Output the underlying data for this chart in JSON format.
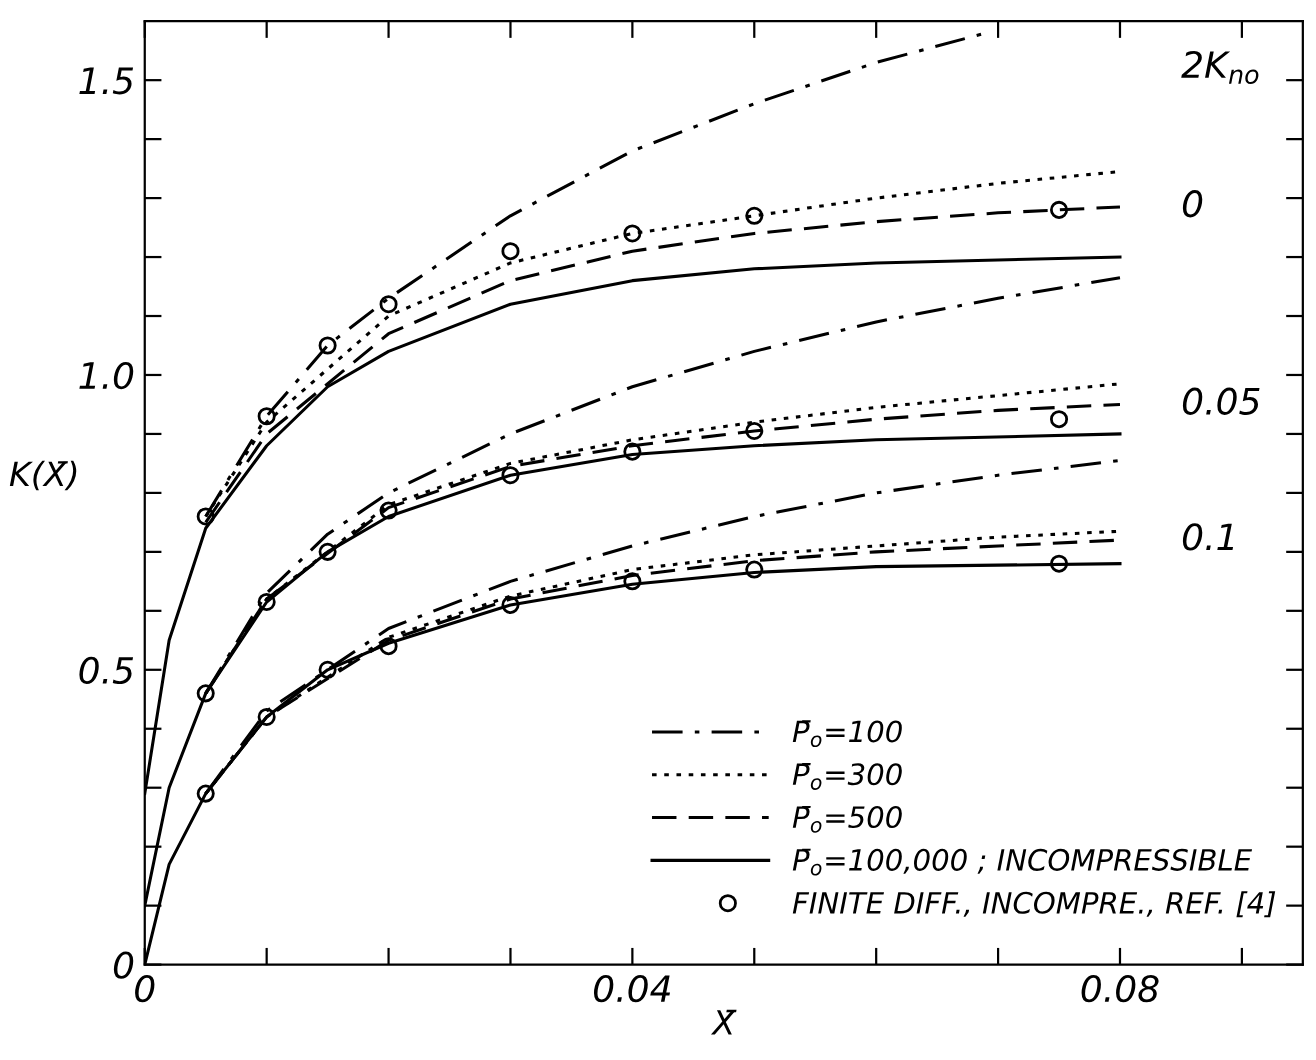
{
  "chart_data": {
    "type": "line",
    "xlabel": "X̄",
    "ylabel": "K(X̄)",
    "xlim": [
      0,
      0.095
    ],
    "ylim": [
      0,
      1.6
    ],
    "xticks": [
      0,
      {
        "value": 0.01,
        "label": null
      },
      {
        "value": 0.02,
        "label": null
      },
      {
        "value": 0.03,
        "label": null
      },
      0.04,
      {
        "value": 0.05,
        "label": null
      },
      {
        "value": 0.06,
        "label": null
      },
      {
        "value": 0.07,
        "label": null
      },
      0.08,
      {
        "value": 0.09,
        "label": null
      }
    ],
    "yticks": [
      0,
      {
        "value": 0.1,
        "label": null
      },
      {
        "value": 0.2,
        "label": null
      },
      {
        "value": 0.3,
        "label": null
      },
      {
        "value": 0.4,
        "label": null
      },
      0.5,
      {
        "value": 0.6,
        "label": null
      },
      {
        "value": 0.7,
        "label": null
      },
      {
        "value": 0.8,
        "label": null
      },
      {
        "value": 0.9,
        "label": null
      },
      {
        "value": 1.0,
        "label": "1.0"
      },
      {
        "value": 1.1,
        "label": null
      },
      {
        "value": 1.2,
        "label": null
      },
      {
        "value": 1.3,
        "label": null
      },
      {
        "value": 1.4,
        "label": null
      },
      1.5
    ],
    "grid": false,
    "legend": "bottom right",
    "series": [
      {
        "name": "P̄$_{o}$=100",
        "color": "#000000",
        "line_style": "dashdot",
        "x": [
          0.005,
          0.01,
          0.015,
          0.02,
          0.03,
          0.04,
          0.05,
          0.06,
          0.069
        ],
        "values": [
          0.76,
          0.93,
          1.05,
          1.13,
          1.27,
          1.38,
          1.46,
          1.53,
          1.58
        ]
      },
      {
        "name": "P̄$_{o}$=300",
        "color": "#000000",
        "line_style": "dotted",
        "x": [
          0.005,
          0.01,
          0.02,
          0.03,
          0.04,
          0.05,
          0.06,
          0.07,
          0.08
        ],
        "values": [
          0.76,
          0.92,
          1.1,
          1.19,
          1.24,
          1.27,
          1.3,
          1.325,
          1.345
        ]
      },
      {
        "name": "P̄$_{o}$=500",
        "color": "#000000",
        "line_style": "dashed",
        "x": [
          0.005,
          0.01,
          0.02,
          0.03,
          0.04,
          0.05,
          0.06,
          0.07,
          0.08
        ],
        "values": [
          0.75,
          0.9,
          1.07,
          1.16,
          1.21,
          1.24,
          1.26,
          1.275,
          1.285
        ]
      },
      {
        "name": "P̄$_{o}$=100,000 ; INCOMPRESSIBLE",
        "color": "#000000",
        "line_style": "solid",
        "x": [
          0,
          0.002,
          0.005,
          0.01,
          0.015,
          0.02,
          0.03,
          0.04,
          0.05,
          0.06,
          0.08
        ],
        "values": [
          0.29,
          0.55,
          0.74,
          0.88,
          0.98,
          1.04,
          1.12,
          1.16,
          1.18,
          1.19,
          1.2
        ]
      },
      {
        "name": "FINITE DIFF., INCOMPRE., REF. [4]",
        "type": "scatter",
        "marker": "circle",
        "color": "#000000",
        "x": [
          0.005,
          0.01,
          0.015,
          0.02,
          0.03,
          0.04,
          0.05,
          0.075
        ],
        "values": [
          0.76,
          0.93,
          1.05,
          1.12,
          1.21,
          1.24,
          1.27,
          1.28
        ]
      },
      {
        "color": "#000000",
        "line_style": "dashdot",
        "x": [
          0.005,
          0.01,
          0.015,
          0.02,
          0.03,
          0.04,
          0.05,
          0.06,
          0.07,
          0.08
        ],
        "values": [
          0.46,
          0.63,
          0.73,
          0.8,
          0.9,
          0.98,
          1.04,
          1.09,
          1.13,
          1.165
        ]
      },
      {
        "color": "#000000",
        "line_style": "dotted",
        "x": [
          0.005,
          0.01,
          0.02,
          0.03,
          0.04,
          0.05,
          0.06,
          0.07,
          0.08
        ],
        "values": [
          0.46,
          0.62,
          0.78,
          0.85,
          0.89,
          0.92,
          0.945,
          0.965,
          0.985
        ]
      },
      {
        "color": "#000000",
        "line_style": "dashed",
        "x": [
          0.005,
          0.01,
          0.02,
          0.03,
          0.04,
          0.05,
          0.06,
          0.07,
          0.08
        ],
        "values": [
          0.46,
          0.62,
          0.775,
          0.845,
          0.88,
          0.905,
          0.925,
          0.94,
          0.95
        ]
      },
      {
        "color": "#000000",
        "line_style": "solid",
        "x": [
          0,
          0.002,
          0.005,
          0.01,
          0.015,
          0.02,
          0.03,
          0.04,
          0.05,
          0.06,
          0.08
        ],
        "values": [
          0.1,
          0.3,
          0.46,
          0.615,
          0.7,
          0.76,
          0.83,
          0.865,
          0.88,
          0.89,
          0.9
        ]
      },
      {
        "type": "scatter",
        "marker": "circle",
        "color": "#000000",
        "x": [
          0.005,
          0.01,
          0.015,
          0.02,
          0.03,
          0.04,
          0.05,
          0.075
        ],
        "values": [
          0.46,
          0.615,
          0.7,
          0.77,
          0.83,
          0.87,
          0.905,
          0.925
        ]
      },
      {
        "color": "#000000",
        "line_style": "dashdot",
        "x": [
          0.005,
          0.01,
          0.02,
          0.03,
          0.04,
          0.05,
          0.06,
          0.07,
          0.08
        ],
        "values": [
          0.29,
          0.43,
          0.57,
          0.65,
          0.71,
          0.76,
          0.8,
          0.83,
          0.855
        ]
      },
      {
        "color": "#000000",
        "line_style": "dotted",
        "x": [
          0.005,
          0.01,
          0.02,
          0.03,
          0.04,
          0.05,
          0.06,
          0.07,
          0.08
        ],
        "values": [
          0.29,
          0.42,
          0.555,
          0.625,
          0.67,
          0.695,
          0.71,
          0.725,
          0.735
        ]
      },
      {
        "color": "#000000",
        "line_style": "dashed",
        "x": [
          0.005,
          0.01,
          0.02,
          0.03,
          0.04,
          0.05,
          0.06,
          0.07,
          0.08
        ],
        "values": [
          0.29,
          0.42,
          0.55,
          0.62,
          0.66,
          0.685,
          0.7,
          0.71,
          0.72
        ]
      },
      {
        "color": "#000000",
        "line_style": "solid",
        "x": [
          0,
          0.002,
          0.005,
          0.01,
          0.015,
          0.02,
          0.03,
          0.04,
          0.05,
          0.06,
          0.08
        ],
        "values": [
          0,
          0.17,
          0.29,
          0.42,
          0.5,
          0.545,
          0.61,
          0.645,
          0.665,
          0.675,
          0.68
        ]
      },
      {
        "type": "scatter",
        "marker": "circle",
        "color": "#000000",
        "x": [
          0.005,
          0.01,
          0.015,
          0.02,
          0.03,
          0.04,
          0.05,
          0.075
        ],
        "values": [
          0.29,
          0.42,
          0.5,
          0.54,
          0.61,
          0.65,
          0.67,
          0.68
        ]
      }
    ],
    "annotations": [
      "2K$_{no}$",
      "0",
      "0.05",
      "0.1"
    ]
  }
}
